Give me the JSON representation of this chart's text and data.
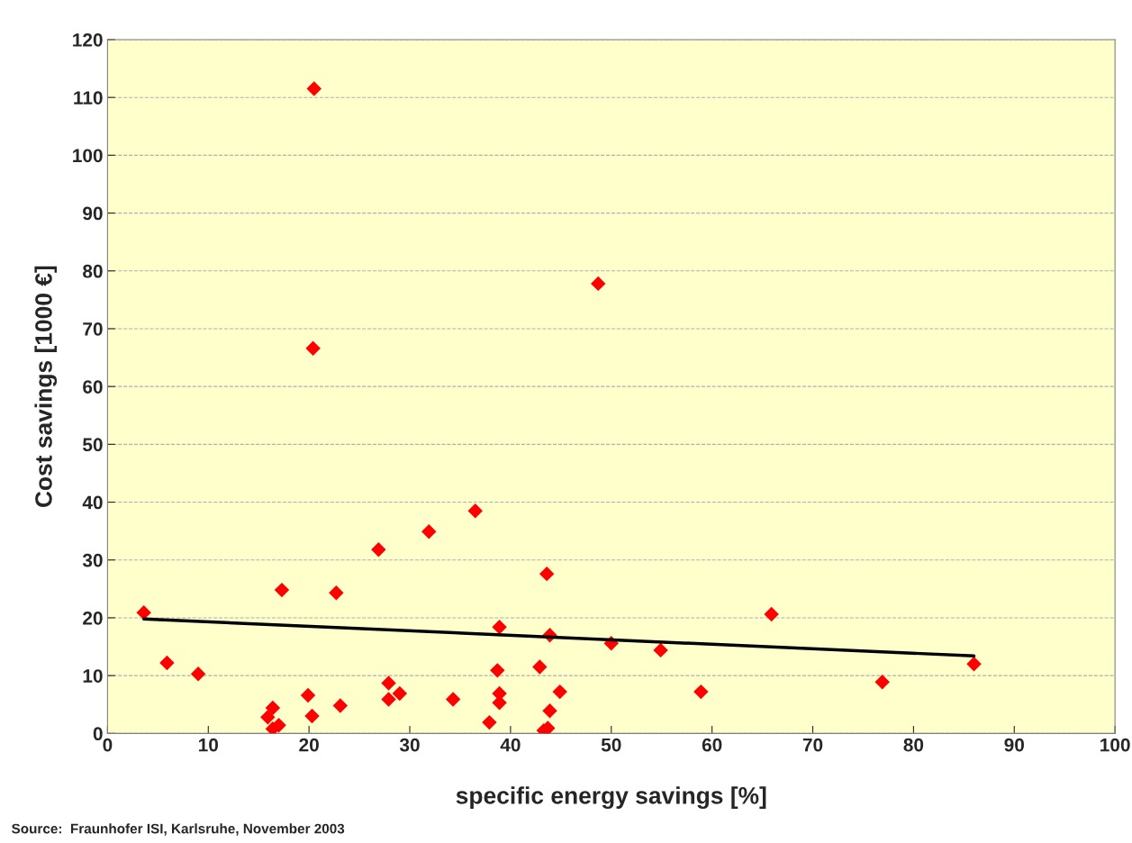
{
  "chart_data": {
    "type": "scatter",
    "xlabel": "specific energy savings [%]",
    "ylabel": "Cost savings [1000 €]",
    "annotations": [
      "Source:  Fraunhofer ISI, Karlsruhe, November 2003"
    ],
    "xlim": [
      0,
      100
    ],
    "xticks": [
      0,
      10,
      20,
      30,
      40,
      50,
      60,
      70,
      80,
      90,
      100
    ],
    "ylim": [
      0,
      120
    ],
    "yticks": [
      0,
      10,
      20,
      30,
      40,
      50,
      60,
      70,
      80,
      90,
      100,
      110,
      120
    ],
    "grid": "y",
    "legend": false,
    "series": [
      {
        "color": "#ff0000",
        "marker": "diamond",
        "x": [
          3.6,
          5.9,
          9.0,
          15.9,
          16.4,
          16.4,
          17.0,
          17.3,
          19.9,
          20.3,
          20.5,
          20.4,
          22.7,
          23.1,
          26.9,
          27.9,
          27.9,
          29.0,
          31.9,
          34.3,
          36.5,
          37.9,
          38.9,
          38.7,
          38.9,
          38.9,
          42.9,
          43.3,
          43.7,
          43.6,
          43.9,
          43.9,
          44.9,
          48.7,
          50.0,
          54.9,
          58.9,
          65.9,
          76.9,
          86.0
        ],
        "values": [
          20.9,
          12.2,
          10.3,
          2.8,
          4.4,
          0.8,
          1.4,
          24.8,
          6.6,
          3.0,
          111.5,
          66.6,
          24.3,
          4.8,
          31.8,
          8.7,
          5.9,
          6.9,
          34.9,
          5.9,
          38.5,
          1.9,
          18.4,
          10.9,
          6.9,
          5.3,
          11.5,
          0.5,
          0.9,
          27.6,
          17.0,
          3.9,
          7.2,
          77.8,
          15.6,
          14.4,
          7.2,
          20.6,
          8.9,
          12.0
        ]
      },
      {
        "type": "line",
        "color": "#000000",
        "marker": "none",
        "x": [
          3.6,
          86.0
        ],
        "values": [
          19.8,
          13.4
        ]
      }
    ]
  }
}
